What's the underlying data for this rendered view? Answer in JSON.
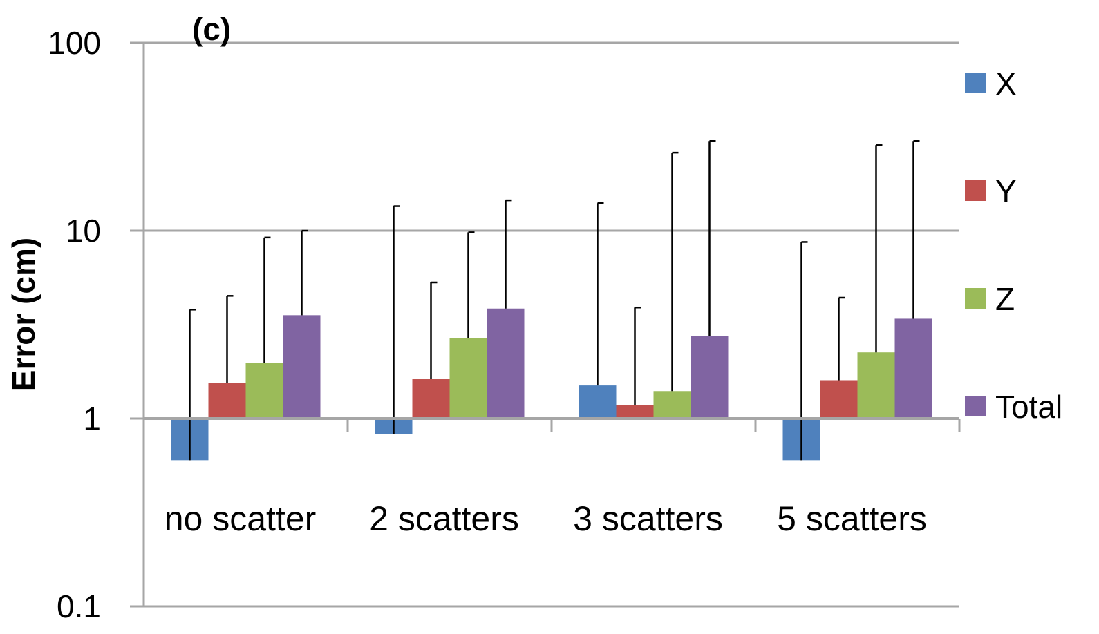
{
  "chart_data": {
    "type": "bar",
    "panel_label": "(c)",
    "ylabel": "Error (cm)",
    "xlabel": "",
    "yscale": "log",
    "ylim": [
      0.1,
      100
    ],
    "yticks": [
      0.1,
      1,
      10,
      100
    ],
    "ytick_labels": [
      "0.1",
      "1",
      "10",
      "100"
    ],
    "baseline": 1,
    "grid": true,
    "legend_position": "right",
    "categories": [
      "no scatter",
      "2 scatters",
      "3 scatters",
      "5 scatters"
    ],
    "series": [
      {
        "name": "X",
        "color": "#4F81BD",
        "values": [
          0.6,
          0.83,
          1.5,
          0.6
        ],
        "err_upper": [
          3.8,
          13.5,
          14.0,
          8.7
        ]
      },
      {
        "name": "Y",
        "color": "#C0504D",
        "values": [
          1.55,
          1.62,
          1.18,
          1.6
        ],
        "err_upper": [
          4.5,
          5.3,
          3.9,
          4.4
        ]
      },
      {
        "name": "Z",
        "color": "#9BBB59",
        "values": [
          1.98,
          2.68,
          1.4,
          2.25
        ],
        "err_upper": [
          9.2,
          9.8,
          26.0,
          28.5
        ]
      },
      {
        "name": "Total",
        "color": "#8064A2",
        "values": [
          3.55,
          3.85,
          2.75,
          3.4
        ],
        "err_upper": [
          10.0,
          14.5,
          30.0,
          30.0
        ]
      }
    ]
  }
}
